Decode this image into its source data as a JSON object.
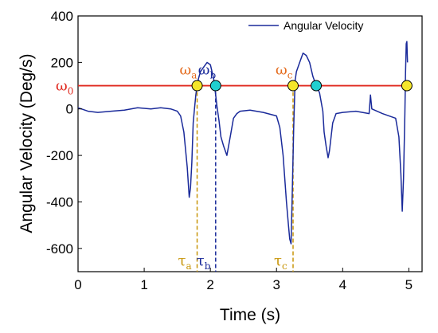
{
  "chart_data": {
    "type": "line",
    "xlabel": "Time (s)",
    "ylabel": "Angular Velocity (Deg/s)",
    "xlim": [
      0,
      5.2
    ],
    "ylim": [
      -700,
      400
    ],
    "xticks": [
      "0",
      "1",
      "2",
      "3",
      "4",
      "5"
    ],
    "xtick_values": [
      0,
      1,
      2,
      3,
      4,
      5
    ],
    "yticks": [
      "400",
      "200",
      "0",
      "-200",
      "-400",
      "-600"
    ],
    "ytick_values": [
      400,
      200,
      0,
      -200,
      -400,
      -600
    ],
    "grid": false,
    "legend_position": "top-right",
    "series": [
      {
        "name": "Angular Velocity",
        "color": "#1a2a9a",
        "x": [
          0,
          0.05,
          0.15,
          0.3,
          0.5,
          0.7,
          0.9,
          1.1,
          1.25,
          1.4,
          1.5,
          1.55,
          1.6,
          1.65,
          1.68,
          1.7,
          1.72,
          1.74,
          1.76,
          1.78,
          1.8,
          1.82,
          1.85,
          1.9,
          1.95,
          2.0,
          2.05,
          2.08,
          2.1,
          2.13,
          2.16,
          2.2,
          2.25,
          2.3,
          2.35,
          2.4,
          2.45,
          2.6,
          2.8,
          3.0,
          3.05,
          3.1,
          3.15,
          3.18,
          3.2,
          3.22,
          3.24,
          3.26,
          3.28,
          3.3,
          3.35,
          3.4,
          3.45,
          3.5,
          3.55,
          3.6,
          3.65,
          3.7,
          3.72,
          3.75,
          3.78,
          3.8,
          3.85,
          3.9,
          4.0,
          4.2,
          4.4,
          4.42,
          4.44,
          4.6,
          4.8,
          4.85,
          4.88,
          4.9,
          4.92,
          4.94,
          4.95,
          4.96,
          4.97,
          4.98
        ],
        "y": [
          5,
          0,
          -10,
          -15,
          -10,
          -5,
          5,
          0,
          5,
          0,
          -10,
          -30,
          -100,
          -250,
          -380,
          -340,
          -230,
          -60,
          0,
          60,
          100,
          130,
          160,
          180,
          200,
          190,
          130,
          60,
          10,
          -50,
          -120,
          -160,
          -200,
          -120,
          -40,
          -20,
          -10,
          -5,
          -15,
          -30,
          -80,
          -200,
          -400,
          -500,
          -560,
          -580,
          -330,
          -80,
          120,
          160,
          200,
          240,
          230,
          200,
          140,
          100,
          70,
          -10,
          -100,
          -160,
          -210,
          -180,
          -60,
          -20,
          -15,
          -10,
          -20,
          60,
          0,
          -20,
          -40,
          -120,
          -280,
          -440,
          -300,
          -20,
          150,
          280,
          290,
          200
        ]
      }
    ],
    "threshold": {
      "label_main": "ω",
      "label_sub": "0",
      "value": 100,
      "color": "#e0281e"
    },
    "crossing_points": [
      {
        "x": 1.8,
        "y": 100,
        "fill": "#f5e62a",
        "omega_sub": "a",
        "omega_color": "#e46a1c",
        "tau_sub": "a",
        "tau_color": "#c8960a"
      },
      {
        "x": 2.08,
        "y": 100,
        "fill": "#20d0d0",
        "omega_sub": "b",
        "omega_color": "#1a2a9a",
        "tau_sub": "b",
        "tau_color": "#1a2a9a"
      },
      {
        "x": 3.25,
        "y": 100,
        "fill": "#f5e62a",
        "omega_sub": "c",
        "omega_color": "#e46a1c",
        "tau_sub": "c",
        "tau_color": "#c8960a"
      },
      {
        "x": 3.6,
        "y": 100,
        "fill": "#20d0d0"
      },
      {
        "x": 4.97,
        "y": 100,
        "fill": "#f5e62a"
      }
    ],
    "symbols": {
      "omega": "ω",
      "tau": "τ"
    }
  }
}
